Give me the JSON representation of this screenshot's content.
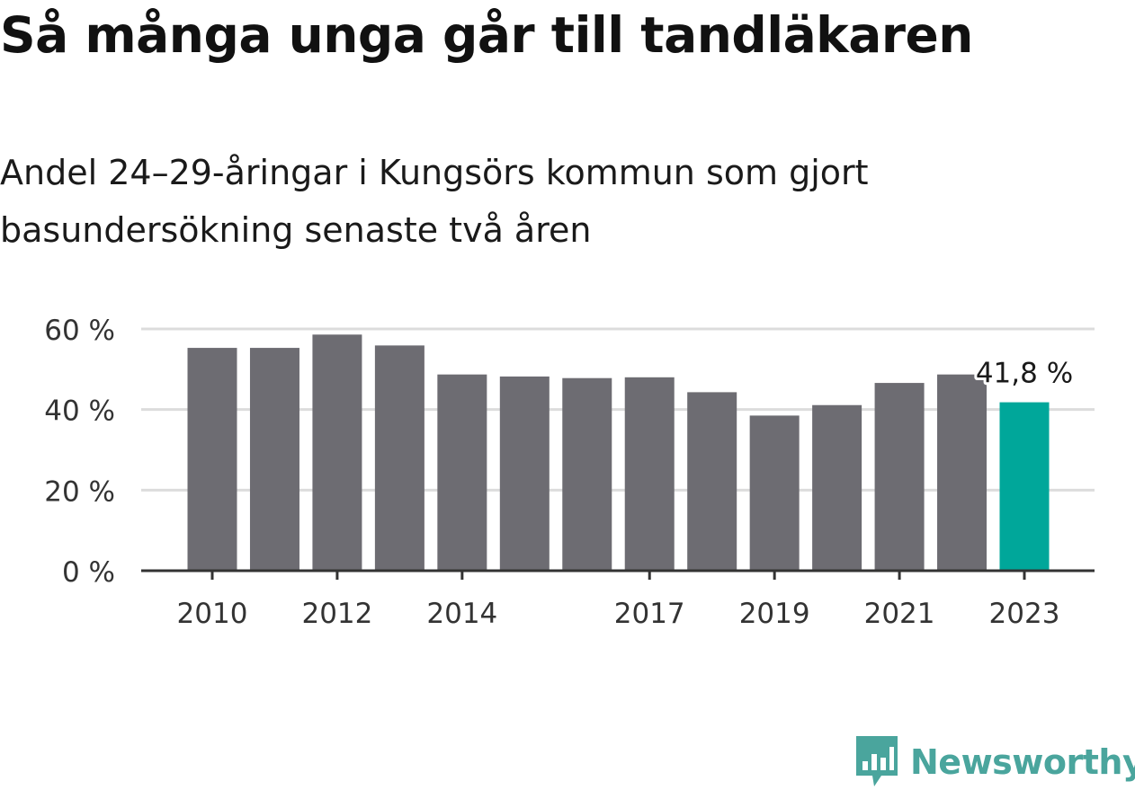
{
  "title": "Så många unga går till tandläkaren",
  "subtitle": "Andel 24–29-åringar i Kungsörs kommun som gjort basundersökning senaste två åren",
  "brand": {
    "name": "Newsworthy",
    "icon": "newsworthy-logo-icon",
    "color": "#4aa59d"
  },
  "colors": {
    "bar": "#6d6c72",
    "highlight": "#00a79a",
    "grid": "#dcdcdc",
    "axis": "#333333",
    "text": "#333333"
  },
  "chart_data": {
    "type": "bar",
    "categories": [
      "2010",
      "2011",
      "2012",
      "2013",
      "2014",
      "2015",
      "2016",
      "2017",
      "2018",
      "2019",
      "2020",
      "2021",
      "2022",
      "2023"
    ],
    "values": [
      55.3,
      55.3,
      58.6,
      55.9,
      48.7,
      48.2,
      47.8,
      48.0,
      44.3,
      38.5,
      41.1,
      46.6,
      48.7,
      41.8
    ],
    "x_tick_labels": [
      "2010",
      "",
      "2012",
      "",
      "2014",
      "",
      "",
      "2017",
      "",
      "2019",
      "",
      "2021",
      "",
      "2023"
    ],
    "y_ticks": [
      0,
      20,
      40,
      60
    ],
    "y_tick_labels": [
      "0 %",
      "20 %",
      "40 %",
      "60 %"
    ],
    "ylim": [
      0,
      60
    ],
    "grid": true,
    "xlabel": "",
    "ylabel": "",
    "highlight_index": 13,
    "annotation": "41,8 %"
  }
}
